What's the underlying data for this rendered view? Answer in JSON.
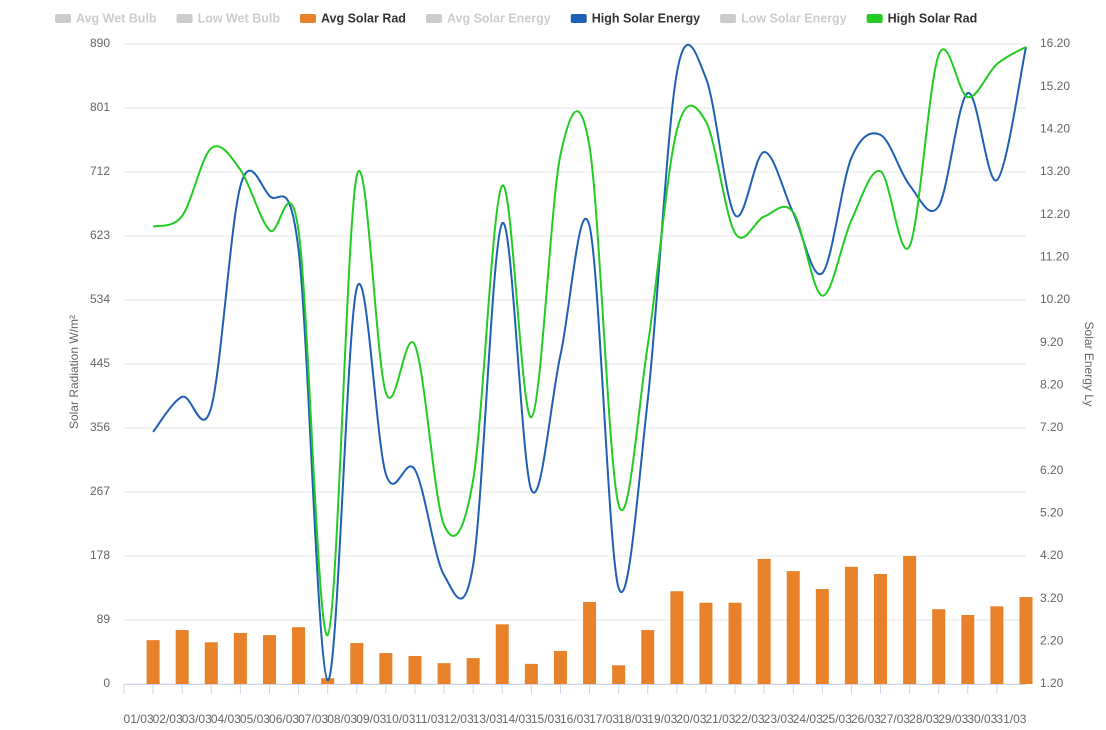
{
  "chart_data": {
    "type": "combo",
    "ylabel": "Solar Radiation W/m²",
    "y2label": "Solar Energy Ly",
    "categories": [
      "01/03",
      "02/03",
      "03/03",
      "04/03",
      "05/03",
      "06/03",
      "07/03",
      "08/03",
      "09/03",
      "10/03",
      "11/03",
      "12/03",
      "13/03",
      "14/03",
      "15/03",
      "16/03",
      "17/03",
      "18/03",
      "19/03",
      "20/03",
      "21/03",
      "22/03",
      "23/03",
      "24/03",
      "25/03",
      "26/03",
      "27/03",
      "28/03",
      "29/03",
      "30/03",
      "31/03"
    ],
    "ylim": [
      0,
      890
    ],
    "yticks": [
      0,
      89,
      178,
      267,
      356,
      445,
      534,
      623,
      712,
      801,
      890
    ],
    "y2lim": [
      1.2,
      16.2
    ],
    "y2ticks": [
      {
        "value": 1.2,
        "label": "1.20"
      },
      {
        "value": 2.2,
        "label": "2.20"
      },
      {
        "value": 3.2,
        "label": "3.20"
      },
      {
        "value": 4.2,
        "label": "4.20"
      },
      {
        "value": 5.2,
        "label": "5.20"
      },
      {
        "value": 6.2,
        "label": "6.20"
      },
      {
        "value": 7.2,
        "label": "7.20"
      },
      {
        "value": 8.2,
        "label": "8.20"
      },
      {
        "value": 9.2,
        "label": "9.20"
      },
      {
        "value": 10.2,
        "label": "10.20"
      },
      {
        "value": 11.2,
        "label": "11.20"
      },
      {
        "value": 12.2,
        "label": "12.20"
      },
      {
        "value": 13.2,
        "label": "13.20"
      },
      {
        "value": 14.2,
        "label": "14.20"
      },
      {
        "value": 15.2,
        "label": "15.20"
      },
      {
        "value": 16.2,
        "label": "16.20"
      }
    ],
    "grid": true,
    "legend": "top-left",
    "series": [
      {
        "name": "Avg Wet Bulb",
        "color": "#cccccc",
        "visible": false
      },
      {
        "name": "Low Wet Bulb",
        "color": "#cccccc",
        "visible": false
      },
      {
        "name": "Avg Solar Rad",
        "color": "#e8822a",
        "kind": "bar",
        "values": [
          61,
          75,
          58,
          71,
          68,
          79,
          8,
          57,
          43,
          39,
          29,
          36,
          83,
          28,
          46,
          114,
          26,
          75,
          129,
          113,
          113,
          174,
          157,
          132,
          163,
          153,
          178,
          104,
          96,
          108,
          121
        ]
      },
      {
        "name": "Avg Solar Energy",
        "color": "#cccccc",
        "visible": false
      },
      {
        "name": "High Solar Energy",
        "color": "#1f5fb5",
        "kind": "line",
        "axis": "y2",
        "values": [
          7.11,
          7.93,
          7.69,
          12.87,
          12.64,
          11.37,
          1.29,
          10.48,
          6.12,
          6.22,
          3.75,
          3.99,
          12.0,
          5.75,
          8.91,
          11.93,
          3.45,
          7.86,
          15.52,
          15.4,
          12.19,
          13.67,
          12.24,
          10.83,
          13.53,
          14.07,
          12.89,
          12.4,
          15.05,
          13.01,
          16.13
        ]
      },
      {
        "name": "Low Solar Energy",
        "color": "#cccccc",
        "visible": false
      },
      {
        "name": "High Solar Rad",
        "color": "#22cc22",
        "kind": "line",
        "values": [
          636,
          651,
          745,
          715,
          631,
          630,
          68,
          707,
          405,
          471,
          221,
          284,
          693,
          371,
          736,
          747,
          249,
          471,
          770,
          782,
          627,
          650,
          656,
          540,
          645,
          713,
          609,
          875,
          816,
          862,
          886
        ]
      }
    ]
  }
}
